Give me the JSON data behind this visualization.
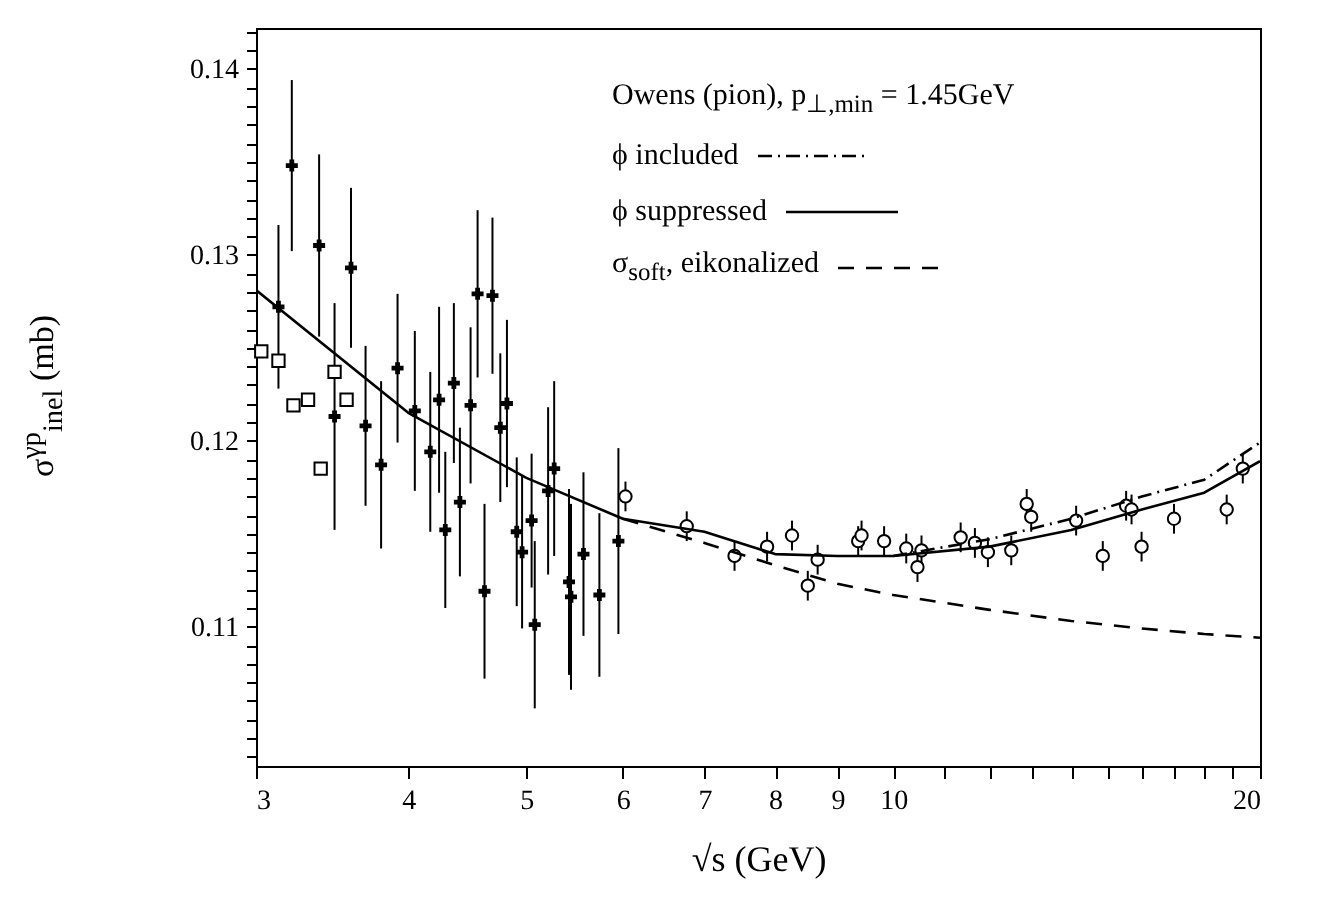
{
  "chart_data": {
    "type": "scatter",
    "xlabel": "√s (GeV)",
    "ylabel": "σ$^{γp}$$_{inel}$ (mb)",
    "legend_title": "Owens (pion), p$_{⊥,min}$ = 1.45GeV",
    "legend": "top right",
    "grid": false,
    "log": "x",
    "xlim": [
      3,
      20
    ],
    "xticks": [
      3,
      4,
      5,
      6,
      7,
      8,
      9,
      10,
      {
        "value": 11,
        "label": null
      },
      {
        "value": 12,
        "label": null
      },
      {
        "value": 13,
        "label": null
      },
      {
        "value": 14,
        "label": null
      },
      {
        "value": 15,
        "label": null
      },
      {
        "value": 16,
        "label": null
      },
      {
        "value": 17,
        "label": null
      },
      {
        "value": 18,
        "label": null
      },
      {
        "value": 19,
        "label": null
      },
      20
    ],
    "ylim": [
      0.1025,
      0.1422
    ],
    "yticks": [
      {
        "value": 0.103,
        "label": null
      },
      {
        "value": 0.104,
        "label": null
      },
      {
        "value": 0.105,
        "label": null
      },
      {
        "value": 0.106,
        "label": null
      },
      {
        "value": 0.107,
        "label": null
      },
      {
        "value": 0.108,
        "label": null
      },
      {
        "value": 0.109,
        "label": null
      },
      0.11,
      {
        "value": 0.111,
        "label": null
      },
      {
        "value": 0.112,
        "label": null
      },
      {
        "value": 0.113,
        "label": null
      },
      {
        "value": 0.114,
        "label": null
      },
      {
        "value": 0.115,
        "label": null
      },
      {
        "value": 0.116,
        "label": null
      },
      {
        "value": 0.117,
        "label": null
      },
      {
        "value": 0.118,
        "label": null
      },
      {
        "value": 0.119,
        "label": null
      },
      0.12,
      {
        "value": 0.121,
        "label": null
      },
      {
        "value": 0.122,
        "label": null
      },
      {
        "value": 0.123,
        "label": null
      },
      {
        "value": 0.124,
        "label": null
      },
      {
        "value": 0.125,
        "label": null
      },
      {
        "value": 0.126,
        "label": null
      },
      {
        "value": 0.127,
        "label": null
      },
      {
        "value": 0.128,
        "label": null
      },
      {
        "value": 0.129,
        "label": null
      },
      0.13,
      {
        "value": 0.131,
        "label": null
      },
      {
        "value": 0.132,
        "label": null
      },
      {
        "value": 0.133,
        "label": null
      },
      {
        "value": 0.134,
        "label": null
      },
      {
        "value": 0.135,
        "label": null
      },
      {
        "value": 0.136,
        "label": null
      },
      {
        "value": 0.137,
        "label": null
      },
      {
        "value": 0.138,
        "label": null
      },
      {
        "value": 0.139,
        "label": null
      },
      0.14,
      {
        "value": 0.141,
        "label": null
      },
      {
        "value": 0.142,
        "label": null
      }
    ],
    "series": [
      {
        "type": "scatter",
        "marker": "cross",
        "color": "#000000",
        "x": [
          3.13,
          3.21,
          3.38,
          3.48,
          3.59,
          3.69,
          3.8,
          3.92,
          4.05,
          4.17,
          4.24,
          4.29,
          4.36,
          4.41,
          4.5,
          4.56,
          4.62,
          4.69,
          4.76,
          4.82,
          4.91,
          4.96,
          5.05,
          5.08,
          5.21,
          5.27,
          5.42,
          5.44,
          5.57,
          5.74,
          5.95
        ],
        "values": [
          0.1272,
          0.1348,
          0.1305,
          0.1213,
          0.1293,
          0.1208,
          0.1187,
          0.1239,
          0.1216,
          0.1194,
          0.1222,
          0.1152,
          0.1231,
          0.1167,
          0.1219,
          0.1279,
          0.1119,
          0.1278,
          0.1207,
          0.122,
          0.1151,
          0.114,
          0.1157,
          0.1101,
          0.1173,
          0.1185,
          0.1124,
          0.1116,
          0.1139,
          0.1117,
          0.1146
        ],
        "errors": [
          0.0044,
          0.0046,
          0.0049,
          0.0061,
          0.0043,
          0.0043,
          0.0045,
          0.004,
          0.0043,
          0.0043,
          0.005,
          0.0042,
          0.0043,
          0.004,
          0.0042,
          0.0045,
          0.0047,
          0.0042,
          0.004,
          0.0045,
          0.004,
          0.0041,
          0.0036,
          0.0045,
          0.0045,
          0.0047,
          0.005,
          0.005,
          0.0044,
          0.0044,
          0.005
        ]
      },
      {
        "type": "scatter",
        "marker": "square",
        "color": "#000000",
        "x": [
          3.03,
          3.13,
          3.22,
          3.31,
          3.39,
          3.48,
          3.56
        ],
        "values": [
          0.1248,
          0.1243,
          0.1219,
          0.1222,
          0.1185,
          0.1237,
          0.1222
        ]
      },
      {
        "type": "scatter",
        "marker": "circle",
        "color": "#000000",
        "x": [
          6.03,
          6.77,
          7.41,
          7.88,
          8.26,
          8.51,
          8.67,
          9.36,
          9.42,
          9.83,
          10.25,
          10.47,
          10.55,
          11.36,
          11.67,
          11.96,
          12.5,
          12.87,
          12.98,
          14.13,
          14.86,
          15.53,
          15.69,
          15.99,
          17.0,
          18.78,
          19.36
        ],
        "values": [
          0.117,
          0.1154,
          0.1138,
          0.1143,
          0.1149,
          0.1122,
          0.1136,
          0.1146,
          0.1149,
          0.1146,
          0.1142,
          0.1132,
          0.1141,
          0.1148,
          0.1145,
          0.114,
          0.1141,
          0.1166,
          0.1159,
          0.1157,
          0.1138,
          0.1165,
          0.1163,
          0.1143,
          0.1158,
          0.1163,
          0.1185
        ],
        "errors": [
          0.0008,
          0.0008,
          0.0008,
          0.0008,
          0.0008,
          0.0008,
          0.0008,
          0.0008,
          0.0008,
          0.0008,
          0.0008,
          0.0008,
          0.0008,
          0.0008,
          0.0008,
          0.0008,
          0.0008,
          0.0008,
          0.0008,
          0.0008,
          0.0008,
          0.0008,
          0.0008,
          0.0008,
          0.0008,
          0.0008,
          0.0008
        ]
      },
      {
        "type": "line",
        "name": "ϕ included",
        "color": "#000000",
        "line_style": "dashdot",
        "x": [
          10,
          12,
          14,
          16,
          18,
          20
        ],
        "values": [
          0.1138,
          0.1147,
          0.1158,
          0.117,
          0.1179,
          0.1199
        ]
      },
      {
        "type": "line",
        "name": "ϕ suppressed",
        "color": "#000000",
        "line_style": "solid",
        "x": [
          3,
          4,
          5,
          6,
          7,
          8,
          9,
          10,
          12,
          14,
          16,
          18,
          20
        ],
        "values": [
          0.1281,
          0.1215,
          0.118,
          0.1158,
          0.1151,
          0.1139,
          0.1138,
          0.1138,
          0.1143,
          0.1152,
          0.1163,
          0.1172,
          0.1189
        ]
      },
      {
        "type": "line",
        "name": "σ$_{soft}$, eikonalized",
        "color": "#000000",
        "line_style": "dashed",
        "x": [
          6,
          7,
          8,
          9,
          10,
          12,
          14,
          16,
          18,
          20
        ],
        "values": [
          0.1158,
          0.1145,
          0.1133,
          0.1123,
          0.1117,
          0.1109,
          0.1103,
          0.1099,
          0.1096,
          0.1094
        ]
      }
    ]
  }
}
